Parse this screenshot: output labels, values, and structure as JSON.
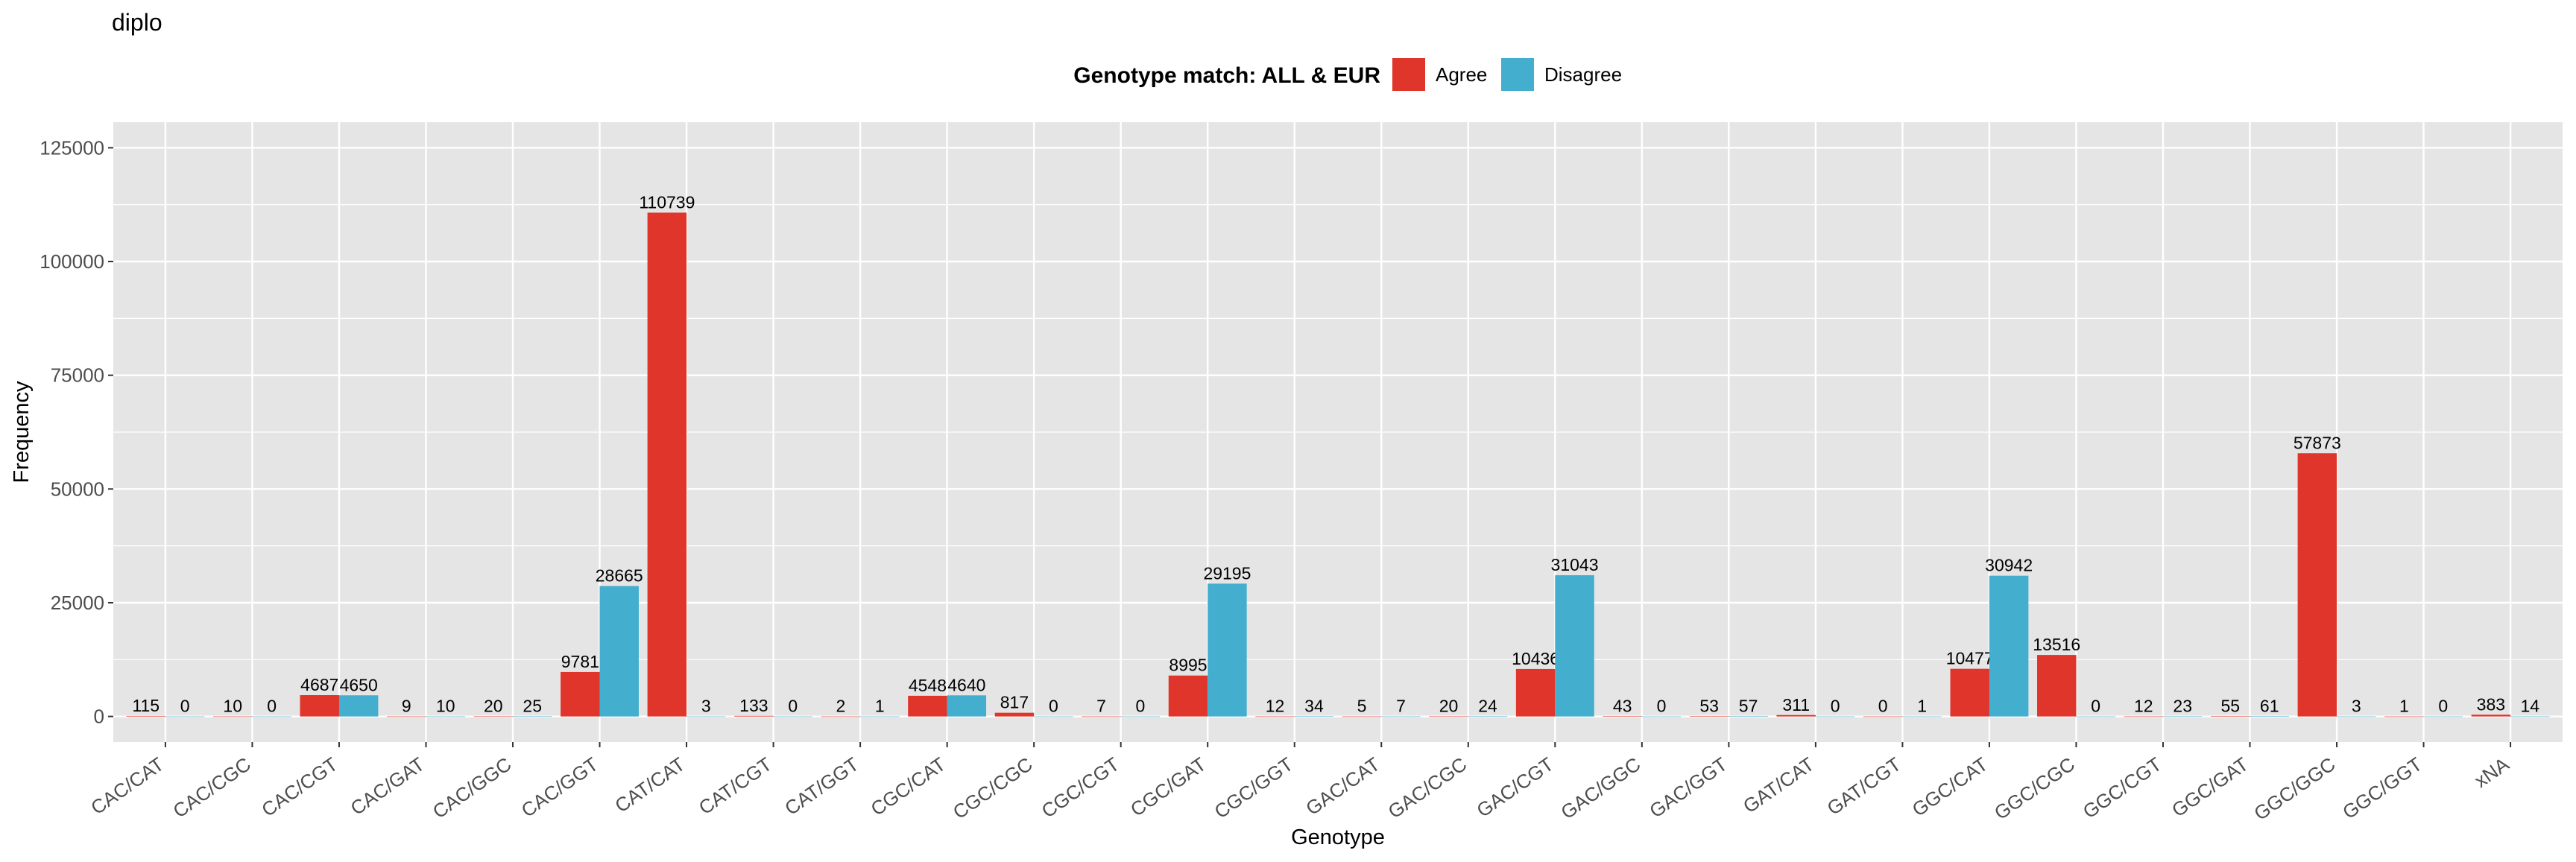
{
  "colors": {
    "agree": "#E0352A",
    "disagree": "#43AECE",
    "panel": "#E5E5E5",
    "grid": "#FFFFFF"
  },
  "chart_data": {
    "type": "bar",
    "title": "diplo",
    "xlabel": "Genotype",
    "ylabel": "Frequency",
    "ylim": [
      0,
      125000
    ],
    "yticks": [
      0,
      25000,
      50000,
      75000,
      100000,
      125000
    ],
    "grid": true,
    "legend": {
      "title": "Genotype match: ALL & EUR",
      "position": "top"
    },
    "categories": [
      "CAC/CAT",
      "CAC/CGC",
      "CAC/CGT",
      "CAC/GAT",
      "CAC/GGC",
      "CAC/GGT",
      "CAT/CAT",
      "CAT/CGT",
      "CAT/GGT",
      "CGC/CAT",
      "CGC/CGC",
      "CGC/CGT",
      "CGC/GAT",
      "CGC/GGT",
      "GAC/CAT",
      "GAC/CGC",
      "GAC/CGT",
      "GAC/GGC",
      "GAC/GGT",
      "GAT/CAT",
      "GAT/CGT",
      "GGC/CAT",
      "GGC/CGC",
      "GGC/CGT",
      "GGC/GAT",
      "GGC/GGC",
      "GGC/GGT",
      "xNA"
    ],
    "series": [
      {
        "name": "Agree",
        "values": [
          115,
          10,
          4687,
          9,
          20,
          9781,
          110739,
          133,
          2,
          4548,
          817,
          7,
          8995,
          12,
          5,
          20,
          10436,
          43,
          53,
          311,
          0,
          10477,
          13516,
          12,
          55,
          57873,
          1,
          383
        ]
      },
      {
        "name": "Disagree",
        "values": [
          0,
          0,
          4650,
          10,
          25,
          28665,
          3,
          0,
          1,
          4640,
          0,
          0,
          29195,
          34,
          7,
          24,
          31043,
          0,
          57,
          0,
          1,
          30942,
          0,
          23,
          61,
          3,
          0,
          14
        ]
      }
    ]
  }
}
